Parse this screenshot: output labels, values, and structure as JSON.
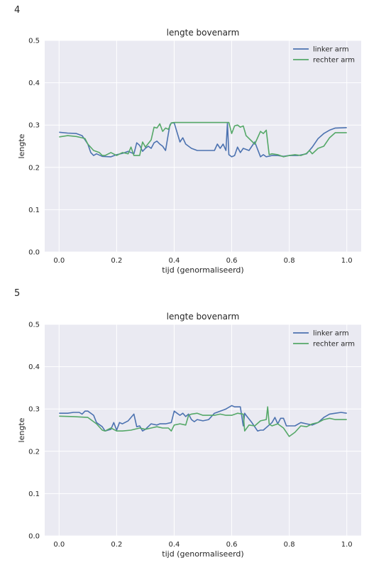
{
  "panels": [
    {
      "label": "4"
    },
    {
      "label": "5"
    }
  ],
  "colors": {
    "linker": "#4c72b0",
    "rechter": "#55a868",
    "axes_bg": "#eaeaf2",
    "grid": "#ffffff"
  },
  "chart_data": [
    {
      "type": "line",
      "title": "lengte bovenarm",
      "xlabel": "tijd (genormaliseerd)",
      "ylabel": "lengte",
      "xlim": [
        -0.05,
        1.05
      ],
      "ylim": [
        0.0,
        0.5
      ],
      "xticks": [
        0.0,
        0.2,
        0.4,
        0.6,
        0.8,
        1.0
      ],
      "yticks": [
        0.0,
        0.1,
        0.2,
        0.3,
        0.4,
        0.5
      ],
      "xtick_labels": [
        "0.0",
        "0.2",
        "0.4",
        "0.6",
        "0.8",
        "1.0"
      ],
      "ytick_labels": [
        "0.0",
        "0.1",
        "0.2",
        "0.3",
        "0.4",
        "0.5"
      ],
      "grid": true,
      "legend": "top-right",
      "series": [
        {
          "name": "linker arm",
          "color": "#4c72b0",
          "x": [
            0.0,
            0.03,
            0.06,
            0.08,
            0.09,
            0.1,
            0.11,
            0.12,
            0.13,
            0.15,
            0.18,
            0.2,
            0.22,
            0.24,
            0.26,
            0.27,
            0.28,
            0.29,
            0.3,
            0.31,
            0.32,
            0.33,
            0.34,
            0.35,
            0.36,
            0.37,
            0.38,
            0.385,
            0.39,
            0.4,
            0.42,
            0.43,
            0.44,
            0.45,
            0.46,
            0.48,
            0.5,
            0.54,
            0.55,
            0.56,
            0.57,
            0.58,
            0.585,
            0.59,
            0.6,
            0.61,
            0.62,
            0.63,
            0.64,
            0.66,
            0.68,
            0.7,
            0.71,
            0.72,
            0.74,
            0.76,
            0.78,
            0.8,
            0.83,
            0.86,
            0.87,
            0.88,
            0.9,
            0.92,
            0.94,
            0.96,
            1.0
          ],
          "y": [
            0.283,
            0.281,
            0.28,
            0.275,
            0.265,
            0.255,
            0.235,
            0.228,
            0.232,
            0.226,
            0.225,
            0.23,
            0.233,
            0.238,
            0.232,
            0.258,
            0.252,
            0.238,
            0.245,
            0.25,
            0.245,
            0.258,
            0.262,
            0.255,
            0.25,
            0.24,
            0.28,
            0.3,
            0.305,
            0.305,
            0.26,
            0.27,
            0.255,
            0.25,
            0.245,
            0.24,
            0.24,
            0.24,
            0.255,
            0.245,
            0.255,
            0.24,
            0.305,
            0.23,
            0.225,
            0.228,
            0.248,
            0.235,
            0.245,
            0.24,
            0.26,
            0.225,
            0.23,
            0.225,
            0.228,
            0.228,
            0.226,
            0.228,
            0.228,
            0.232,
            0.24,
            0.248,
            0.268,
            0.28,
            0.288,
            0.293,
            0.294
          ]
        },
        {
          "name": "rechter arm",
          "color": "#55a868",
          "x": [
            0.0,
            0.03,
            0.06,
            0.08,
            0.09,
            0.1,
            0.12,
            0.14,
            0.15,
            0.16,
            0.18,
            0.2,
            0.22,
            0.24,
            0.25,
            0.26,
            0.28,
            0.29,
            0.3,
            0.32,
            0.33,
            0.34,
            0.35,
            0.36,
            0.37,
            0.38,
            0.39,
            0.4,
            0.45,
            0.5,
            0.55,
            0.59,
            0.6,
            0.61,
            0.62,
            0.63,
            0.64,
            0.65,
            0.68,
            0.7,
            0.71,
            0.72,
            0.73,
            0.74,
            0.76,
            0.78,
            0.8,
            0.82,
            0.84,
            0.86,
            0.87,
            0.88,
            0.9,
            0.92,
            0.94,
            0.96,
            1.0
          ],
          "y": [
            0.272,
            0.275,
            0.273,
            0.27,
            0.268,
            0.255,
            0.24,
            0.235,
            0.228,
            0.228,
            0.235,
            0.228,
            0.235,
            0.232,
            0.248,
            0.228,
            0.228,
            0.26,
            0.248,
            0.265,
            0.295,
            0.293,
            0.303,
            0.285,
            0.293,
            0.29,
            0.305,
            0.306,
            0.306,
            0.306,
            0.306,
            0.306,
            0.28,
            0.298,
            0.3,
            0.295,
            0.298,
            0.275,
            0.255,
            0.285,
            0.28,
            0.288,
            0.23,
            0.232,
            0.23,
            0.225,
            0.228,
            0.23,
            0.228,
            0.233,
            0.24,
            0.232,
            0.245,
            0.25,
            0.27,
            0.282,
            0.282
          ]
        }
      ]
    },
    {
      "type": "line",
      "title": "lengte bovenarm",
      "xlabel": "tijd (genormaliseerd)",
      "ylabel": "lengte",
      "xlim": [
        -0.05,
        1.05
      ],
      "ylim": [
        0.0,
        0.5
      ],
      "xticks": [
        0.0,
        0.2,
        0.4,
        0.6,
        0.8,
        1.0
      ],
      "yticks": [
        0.0,
        0.1,
        0.2,
        0.3,
        0.4,
        0.5
      ],
      "xtick_labels": [
        "0.0",
        "0.2",
        "0.4",
        "0.6",
        "0.8",
        "1.0"
      ],
      "ytick_labels": [
        "0.0",
        "0.1",
        "0.2",
        "0.3",
        "0.4",
        "0.5"
      ],
      "grid": true,
      "legend": "top-right",
      "series": [
        {
          "name": "linker arm",
          "color": "#4c72b0",
          "x": [
            0.0,
            0.03,
            0.05,
            0.07,
            0.08,
            0.09,
            0.1,
            0.12,
            0.13,
            0.15,
            0.16,
            0.18,
            0.19,
            0.2,
            0.21,
            0.22,
            0.24,
            0.26,
            0.27,
            0.28,
            0.29,
            0.3,
            0.32,
            0.34,
            0.35,
            0.37,
            0.39,
            0.4,
            0.41,
            0.42,
            0.43,
            0.44,
            0.45,
            0.46,
            0.47,
            0.48,
            0.5,
            0.52,
            0.54,
            0.56,
            0.58,
            0.6,
            0.61,
            0.63,
            0.64,
            0.645,
            0.65,
            0.67,
            0.69,
            0.7,
            0.71,
            0.73,
            0.74,
            0.75,
            0.76,
            0.77,
            0.78,
            0.79,
            0.8,
            0.82,
            0.84,
            0.86,
            0.88,
            0.9,
            0.92,
            0.94,
            0.96,
            0.98,
            1.0
          ],
          "y": [
            0.29,
            0.29,
            0.292,
            0.292,
            0.288,
            0.295,
            0.295,
            0.285,
            0.268,
            0.258,
            0.248,
            0.252,
            0.268,
            0.25,
            0.268,
            0.265,
            0.272,
            0.288,
            0.258,
            0.26,
            0.248,
            0.252,
            0.265,
            0.262,
            0.265,
            0.265,
            0.268,
            0.295,
            0.29,
            0.285,
            0.29,
            0.282,
            0.288,
            0.275,
            0.27,
            0.275,
            0.272,
            0.275,
            0.29,
            0.295,
            0.3,
            0.308,
            0.305,
            0.305,
            0.26,
            0.29,
            0.285,
            0.268,
            0.248,
            0.25,
            0.25,
            0.262,
            0.268,
            0.28,
            0.265,
            0.278,
            0.278,
            0.26,
            0.26,
            0.26,
            0.268,
            0.265,
            0.262,
            0.268,
            0.28,
            0.288,
            0.29,
            0.292,
            0.29
          ]
        },
        {
          "name": "rechter arm",
          "color": "#55a868",
          "x": [
            0.0,
            0.05,
            0.1,
            0.13,
            0.15,
            0.16,
            0.18,
            0.2,
            0.22,
            0.25,
            0.28,
            0.3,
            0.32,
            0.34,
            0.36,
            0.38,
            0.39,
            0.4,
            0.42,
            0.44,
            0.45,
            0.46,
            0.48,
            0.5,
            0.52,
            0.54,
            0.56,
            0.58,
            0.6,
            0.62,
            0.64,
            0.645,
            0.66,
            0.68,
            0.7,
            0.72,
            0.725,
            0.73,
            0.735,
            0.74,
            0.76,
            0.78,
            0.8,
            0.82,
            0.84,
            0.86,
            0.88,
            0.9,
            0.92,
            0.94,
            0.96,
            1.0
          ],
          "y": [
            0.283,
            0.282,
            0.28,
            0.265,
            0.25,
            0.248,
            0.255,
            0.248,
            0.248,
            0.25,
            0.255,
            0.252,
            0.255,
            0.258,
            0.255,
            0.255,
            0.248,
            0.262,
            0.265,
            0.262,
            0.285,
            0.288,
            0.29,
            0.285,
            0.285,
            0.285,
            0.288,
            0.285,
            0.285,
            0.29,
            0.288,
            0.248,
            0.262,
            0.26,
            0.272,
            0.275,
            0.305,
            0.265,
            0.262,
            0.26,
            0.265,
            0.255,
            0.235,
            0.245,
            0.26,
            0.258,
            0.265,
            0.268,
            0.275,
            0.278,
            0.275,
            0.275
          ]
        }
      ]
    }
  ]
}
